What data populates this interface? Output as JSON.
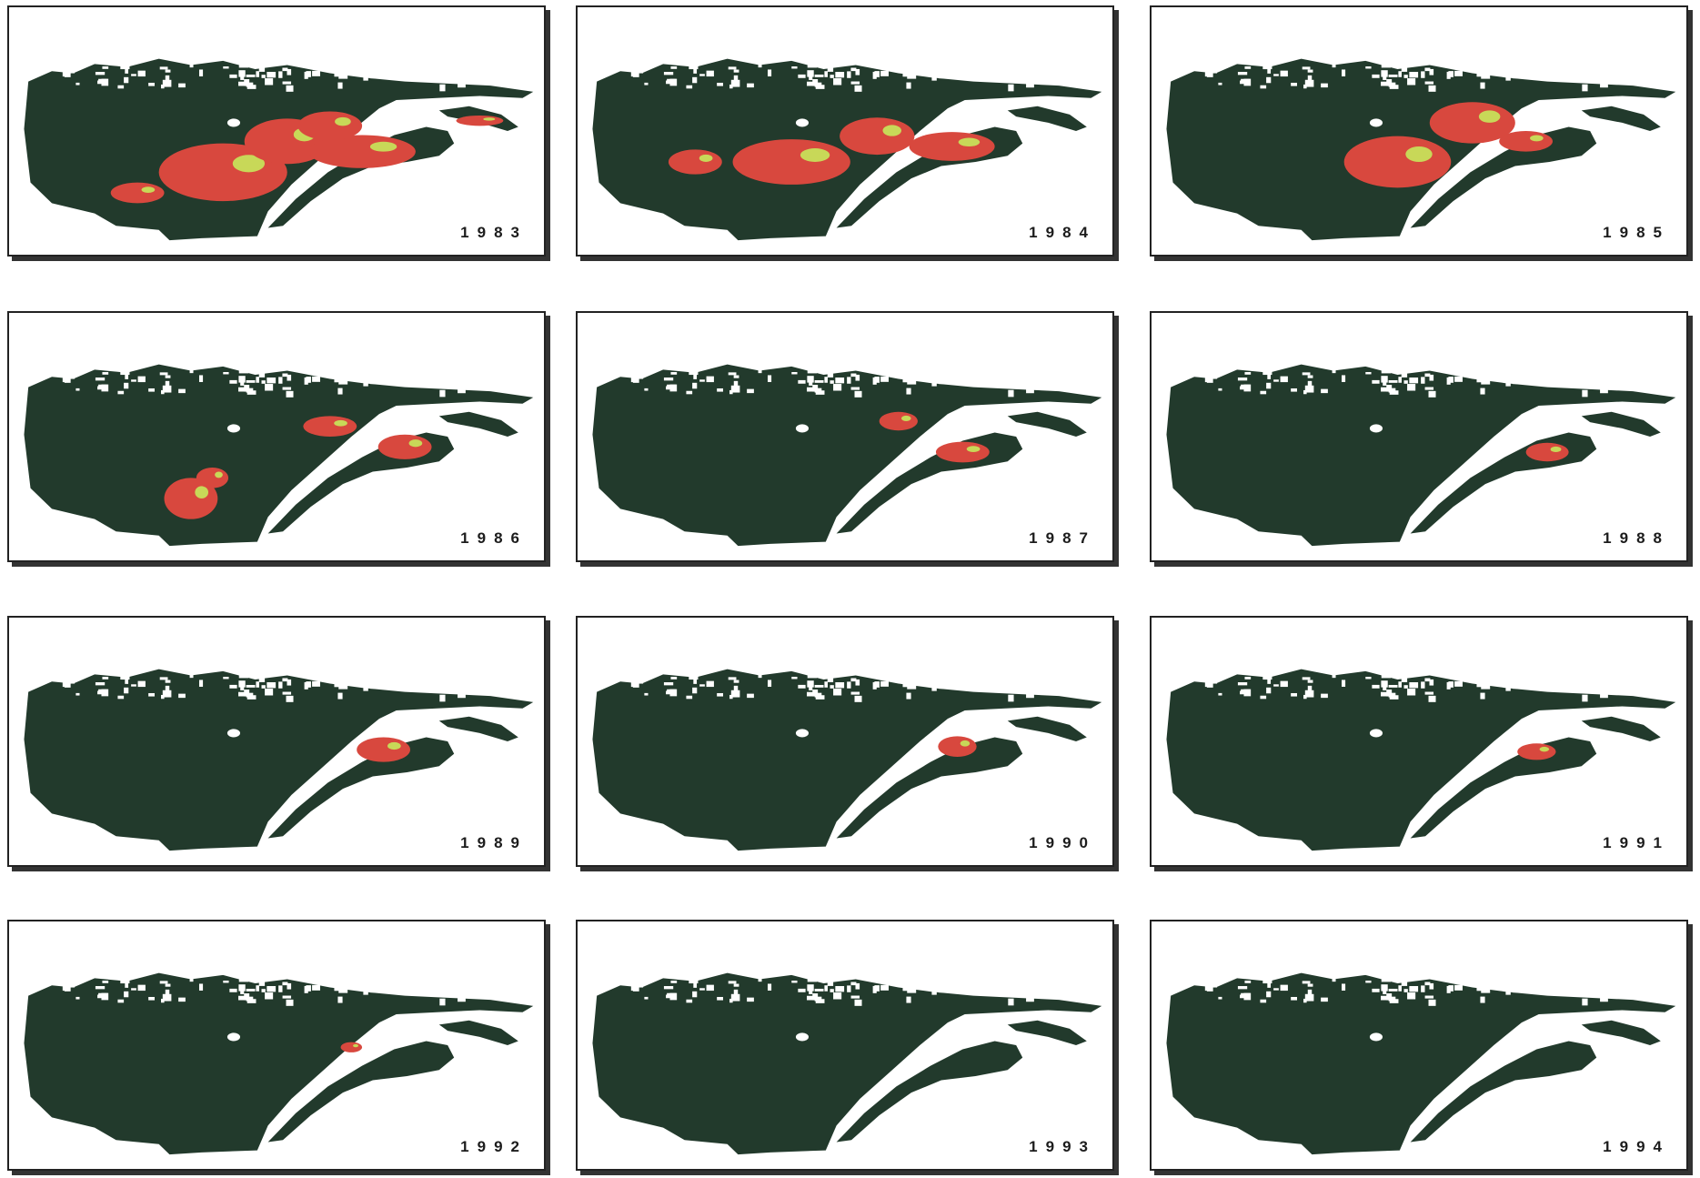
{
  "panels": [
    {
      "year": "1983"
    },
    {
      "year": "1984"
    },
    {
      "year": "1985"
    },
    {
      "year": "1986"
    },
    {
      "year": "1987"
    },
    {
      "year": "1988"
    },
    {
      "year": "1989"
    },
    {
      "year": "1990"
    },
    {
      "year": "1991"
    },
    {
      "year": "1992"
    },
    {
      "year": "1993"
    },
    {
      "year": "1994"
    }
  ]
}
